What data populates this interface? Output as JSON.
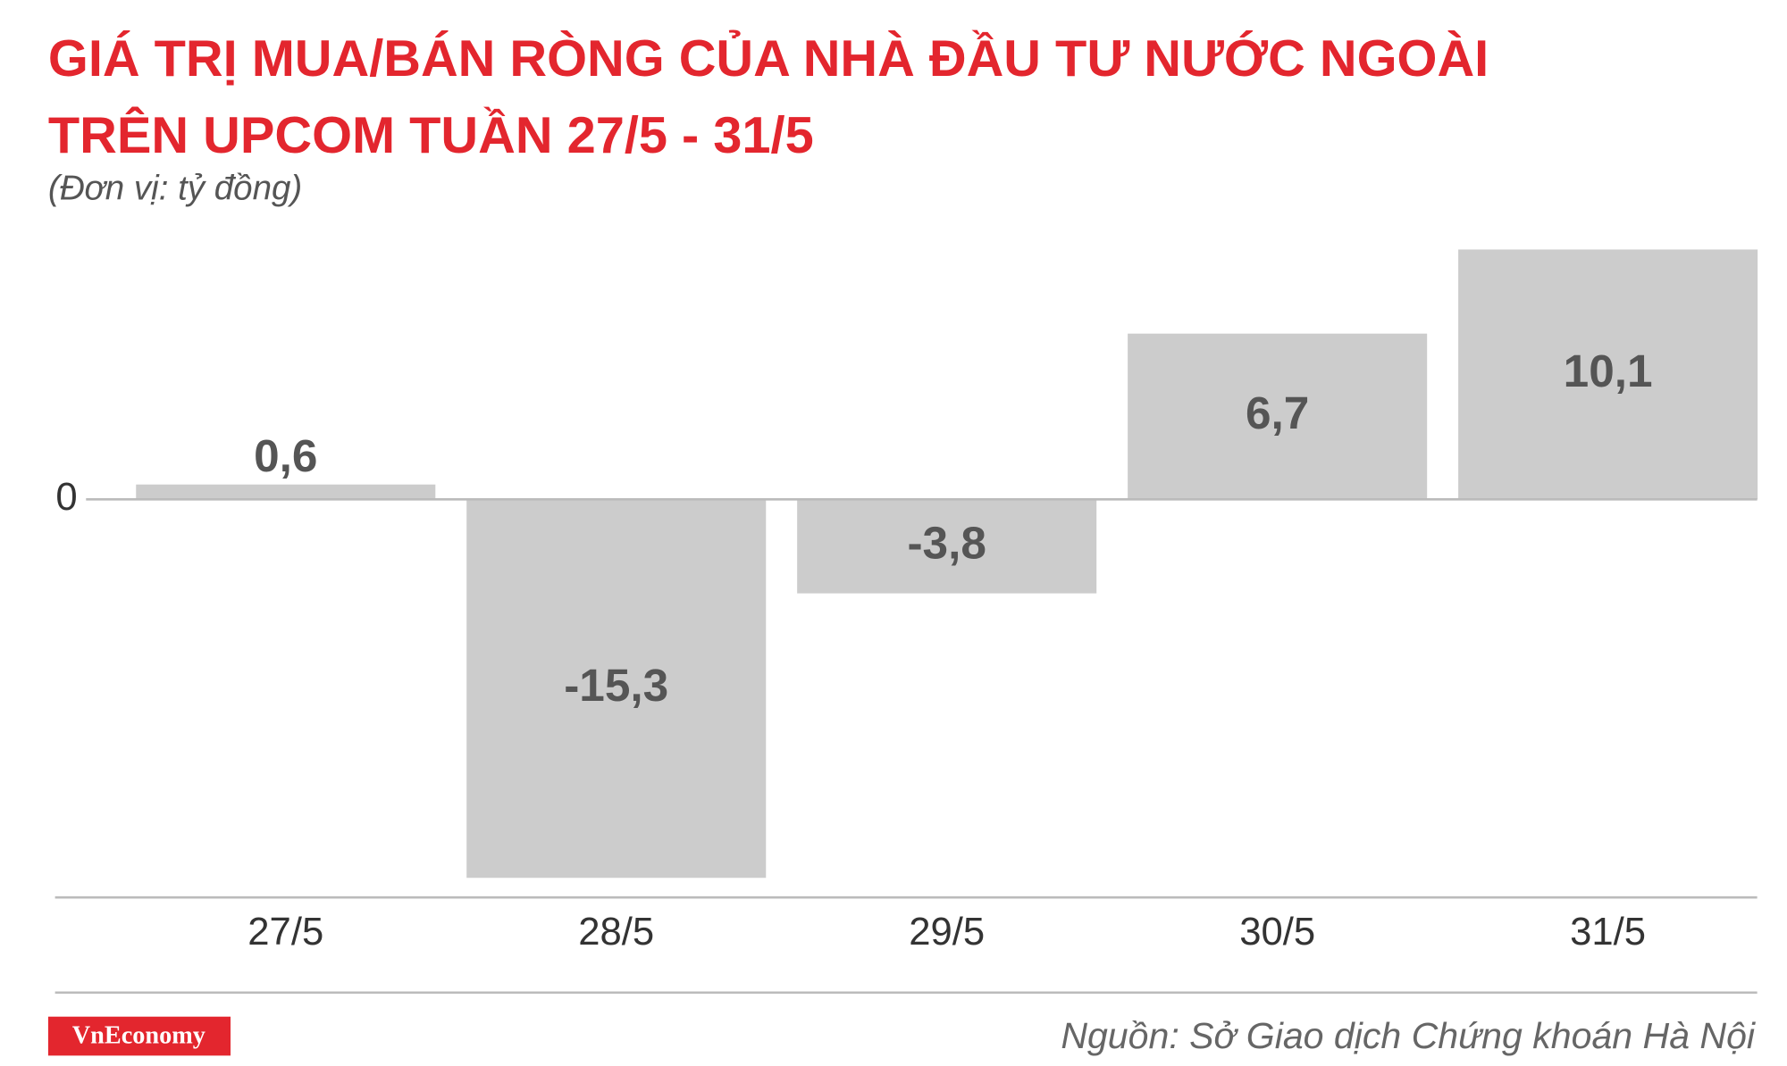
{
  "chart_data": {
    "type": "bar",
    "title": [
      "GIÁ TRỊ MUA/BÁN RÒNG CỦA NHÀ ĐẦU TƯ NƯỚC NGOÀI",
      "TRÊN UPCOM TUẦN 27/5 - 31/5"
    ],
    "subtitle": "(Đơn vị: tỷ đồng)",
    "categories": [
      "27/5",
      "28/5",
      "29/5",
      "30/5",
      "31/5"
    ],
    "values": [
      0.6,
      -15.3,
      -3.8,
      6.7,
      10.1
    ],
    "value_labels": [
      "0,6",
      "-15,3",
      "-3,8",
      "6,7",
      "10,1"
    ],
    "color": "#cccccc",
    "ylim": [
      -16,
      10.5
    ],
    "yticks": [
      0
    ],
    "source": "Nguồn: Sở Giao dịch Chứng khoán Hà Nội",
    "brand": "VnEconomy"
  }
}
